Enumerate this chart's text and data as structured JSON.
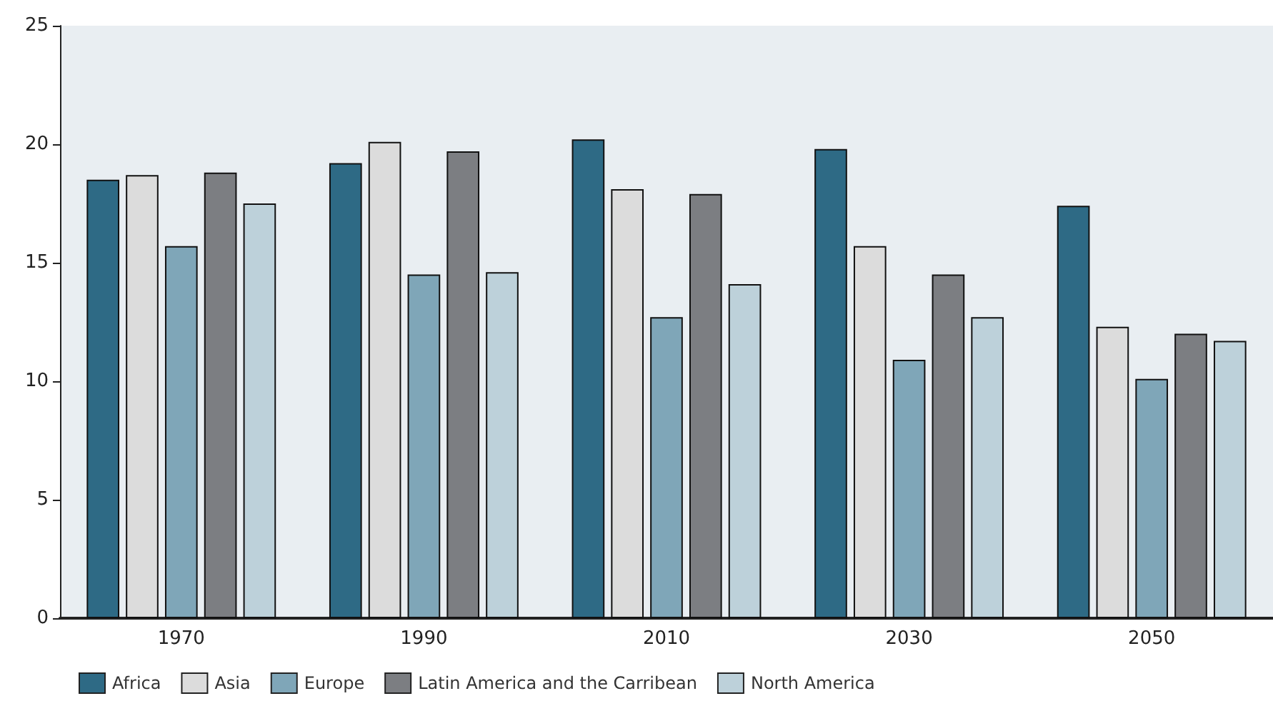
{
  "chart_data": {
    "type": "bar",
    "categories": [
      "1970",
      "1990",
      "2010",
      "2030",
      "2050"
    ],
    "series": [
      {
        "name": "Africa",
        "color": "#2e6a85",
        "values": [
          18.5,
          19.2,
          20.2,
          19.8,
          17.4
        ]
      },
      {
        "name": "Asia",
        "color": "#dcdcdc",
        "values": [
          18.7,
          20.1,
          18.1,
          15.7,
          12.3
        ]
      },
      {
        "name": "Europe",
        "color": "#7fa6b8",
        "values": [
          15.7,
          14.5,
          12.7,
          10.9,
          10.1
        ]
      },
      {
        "name": "Latin America and the Carribean",
        "color": "#7c7e82",
        "values": [
          18.8,
          19.7,
          17.9,
          14.5,
          12.0
        ]
      },
      {
        "name": "North America",
        "color": "#bdd1da",
        "values": [
          17.5,
          14.6,
          14.1,
          12.7,
          11.7
        ]
      }
    ],
    "ylim": [
      0,
      25
    ],
    "yticks": [
      0,
      5,
      10,
      15,
      20,
      25
    ],
    "grid": false,
    "legend": "bottom left"
  }
}
